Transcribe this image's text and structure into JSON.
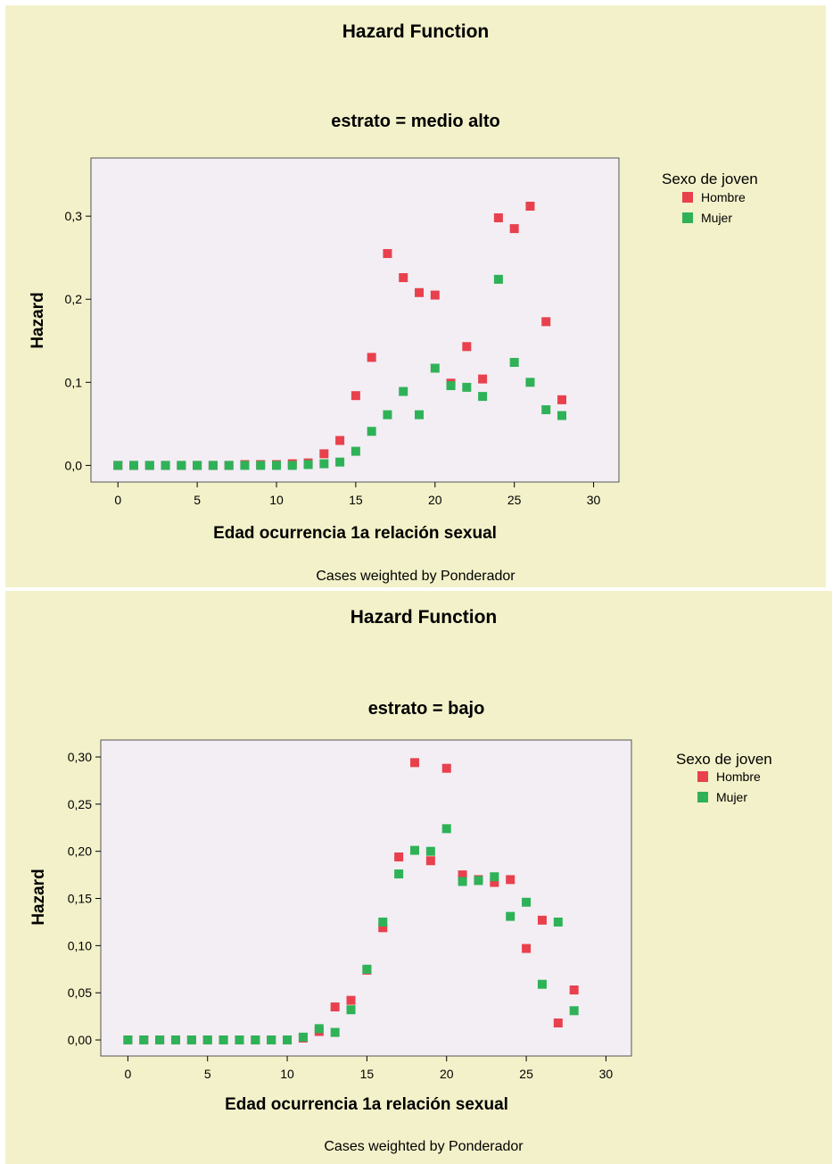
{
  "chart_data": [
    {
      "type": "scatter",
      "title": "Hazard Function",
      "subtitle": "estrato = medio alto",
      "xlabel": "Edad ocurrencia 1a relación sexual",
      "ylabel": "Hazard",
      "footnote": "Cases weighted by Ponderador",
      "xlim": [
        -1.7,
        31.6
      ],
      "ylim": [
        -0.02,
        0.37
      ],
      "xticks": [
        0,
        5,
        10,
        15,
        20,
        25,
        30
      ],
      "yticks": [
        0.0,
        0.1,
        0.2,
        0.3
      ],
      "ytick_labels": [
        "0,0",
        "0,1",
        "0,2",
        "0,3"
      ],
      "grid": false,
      "legend": {
        "title": "Sexo de joven",
        "position": "right"
      },
      "series": [
        {
          "name": "Hombre",
          "color": "#e8414d",
          "x": [
            0,
            1,
            2,
            3,
            4,
            5,
            6,
            7,
            8,
            9,
            10,
            11,
            12,
            13,
            14,
            15,
            16,
            17,
            18,
            19,
            20,
            21,
            22,
            23,
            24,
            25,
            26,
            27,
            28
          ],
          "y": [
            0,
            0,
            0,
            0,
            0,
            0,
            0,
            0,
            0.001,
            0.001,
            0.001,
            0.002,
            0.003,
            0.014,
            0.03,
            0.084,
            0.13,
            0.255,
            0.226,
            0.208,
            0.205,
            0.099,
            0.143,
            0.104,
            0.298,
            0.285,
            0.312,
            0.173,
            0.079
          ]
        },
        {
          "name": "Mujer",
          "color": "#2fb257",
          "x": [
            0,
            1,
            2,
            3,
            4,
            5,
            6,
            7,
            8,
            9,
            10,
            11,
            12,
            13,
            14,
            15,
            16,
            17,
            18,
            19,
            20,
            21,
            22,
            23,
            24,
            25,
            26,
            27,
            28
          ],
          "y": [
            0,
            0,
            0,
            0,
            0,
            0,
            0,
            0,
            0,
            0,
            0,
            0,
            0.001,
            0.002,
            0.004,
            0.017,
            0.041,
            0.061,
            0.089,
            0.061,
            0.117,
            0.096,
            0.094,
            0.083,
            0.224,
            0.124,
            0.1,
            0.067,
            0.06
          ]
        }
      ]
    },
    {
      "type": "scatter",
      "title": "Hazard Function",
      "subtitle": "estrato = bajo",
      "xlabel": "Edad ocurrencia 1a relación sexual",
      "ylabel": "Hazard",
      "footnote": "Cases weighted by Ponderador",
      "xlim": [
        -1.7,
        31.6
      ],
      "ylim": [
        -0.017,
        0.318
      ],
      "xticks": [
        0,
        5,
        10,
        15,
        20,
        25,
        30
      ],
      "yticks": [
        0.0,
        0.05,
        0.1,
        0.15,
        0.2,
        0.25,
        0.3
      ],
      "ytick_labels": [
        "0,00",
        "0,05",
        "0,10",
        "0,15",
        "0,20",
        "0,25",
        "0,30"
      ],
      "grid": false,
      "legend": {
        "title": "Sexo de joven",
        "position": "right"
      },
      "series": [
        {
          "name": "Hombre",
          "color": "#e8414d",
          "x": [
            0,
            1,
            2,
            3,
            4,
            5,
            6,
            7,
            8,
            9,
            10,
            11,
            12,
            13,
            14,
            15,
            16,
            17,
            18,
            19,
            20,
            21,
            22,
            23,
            24,
            25,
            26,
            27,
            28
          ],
          "y": [
            0,
            0,
            0,
            0,
            0,
            0,
            0,
            0,
            0,
            0,
            0,
            0.002,
            0.009,
            0.035,
            0.042,
            0.074,
            0.119,
            0.194,
            0.294,
            0.19,
            0.288,
            0.175,
            0.17,
            0.167,
            0.17,
            0.097,
            0.127,
            0.018,
            0.053
          ]
        },
        {
          "name": "Mujer",
          "color": "#2fb257",
          "x": [
            0,
            1,
            2,
            3,
            4,
            5,
            6,
            7,
            8,
            9,
            10,
            11,
            12,
            13,
            14,
            15,
            16,
            17,
            18,
            19,
            20,
            21,
            22,
            23,
            24,
            25,
            26,
            27,
            28
          ],
          "y": [
            0,
            0,
            0,
            0,
            0,
            0,
            0,
            0,
            0,
            0,
            0,
            0.003,
            0.012,
            0.008,
            0.032,
            0.075,
            0.125,
            0.176,
            0.201,
            0.2,
            0.224,
            0.168,
            0.169,
            0.173,
            0.131,
            0.146,
            0.059,
            0.125,
            0.031
          ]
        }
      ]
    }
  ]
}
